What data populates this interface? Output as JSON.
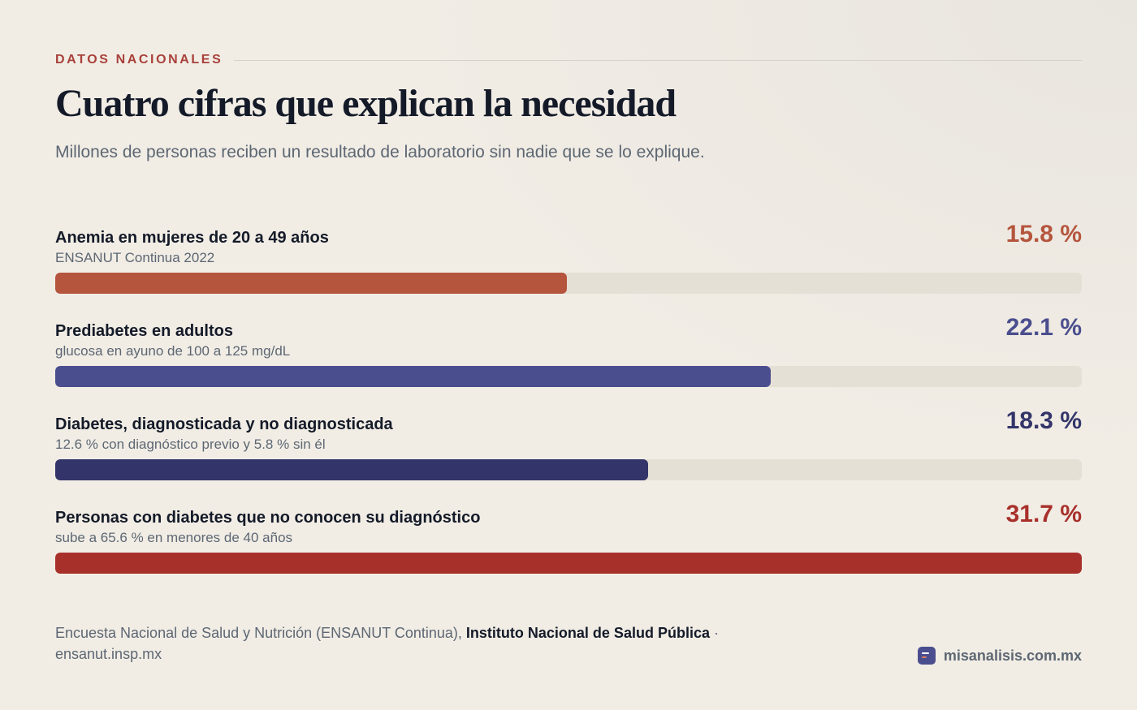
{
  "header": {
    "eyebrow": "DATOS NACIONALES",
    "title": "Cuatro cifras que explican la necesidad",
    "subtitle": "Millones de personas reciben un resultado de laboratorio sin nadie que se lo explique."
  },
  "chart_data": {
    "type": "bar",
    "orientation": "horizontal",
    "unit": "%",
    "xlim": [
      0,
      31.7
    ],
    "categories": [
      "Anemia en mujeres de 20 a 49 años",
      "Prediabetes en adultos",
      "Diabetes, diagnosticada y no diagnosticada",
      "Personas con diabetes que no conocen su diagnóstico"
    ],
    "values": [
      15.8,
      22.1,
      18.3,
      31.7
    ],
    "items": [
      {
        "label": "Anemia en mujeres de 20 a 49 años",
        "sublabel": "ENSANUT Continua 2022",
        "value": 15.8,
        "display": "15.8 %",
        "color": "#b5553e"
      },
      {
        "label": "Prediabetes en adultos",
        "sublabel": "glucosa en ayuno de 100 a 125 mg/dL",
        "value": 22.1,
        "display": "22.1 %",
        "color": "#4b4e8e"
      },
      {
        "label": "Diabetes, diagnosticada y no diagnosticada",
        "sublabel": "12.6 % con diagnóstico previo y 5.8 % sin él",
        "value": 18.3,
        "display": "18.3 %",
        "color": "#33356a"
      },
      {
        "label": "Personas con diabetes que no conocen su diagnóstico",
        "sublabel": "sube a 65.6 % en menores de 40 años",
        "value": 31.7,
        "display": "31.7 %",
        "color": "#a8302b"
      }
    ]
  },
  "footer": {
    "source_prefix": "Encuesta Nacional de Salud y Nutrición (ENSANUT Continua), ",
    "source_org": "Instituto Nacional de Salud Pública",
    "source_sep": " · ",
    "source_url": "ensanut.insp.mx",
    "brand": "misanalisis.com.mx",
    "brand_icon": "chart-logo-icon"
  }
}
